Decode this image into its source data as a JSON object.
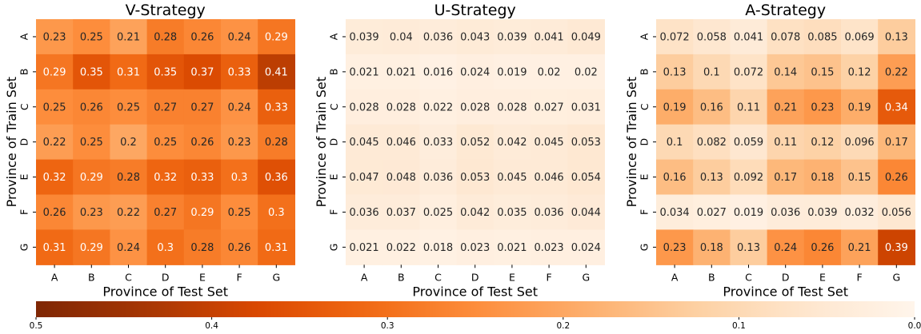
{
  "colors": {
    "scale": [
      "#fff5eb",
      "#fee6ce",
      "#fdd0a2",
      "#fdae6b",
      "#fd8d3c",
      "#f16913",
      "#d94801",
      "#a63603",
      "#7f2704"
    ],
    "text_dark": "#262626",
    "text_light": "#ffffff"
  },
  "chart_data": [
    {
      "type": "heatmap",
      "title": "V-Strategy",
      "xlabel": "Province of Test Set",
      "ylabel": "Province of Train Set",
      "x": [
        "A",
        "B",
        "C",
        "D",
        "E",
        "F",
        "G"
      ],
      "y": [
        "A",
        "B",
        "C",
        "D",
        "E",
        "F",
        "G"
      ],
      "values": [
        [
          "0.23",
          "0.25",
          "0.21",
          "0.28",
          "0.26",
          "0.24",
          "0.29"
        ],
        [
          "0.29",
          "0.35",
          "0.31",
          "0.35",
          "0.37",
          "0.33",
          "0.41"
        ],
        [
          "0.25",
          "0.26",
          "0.25",
          "0.27",
          "0.27",
          "0.24",
          "0.33"
        ],
        [
          "0.22",
          "0.25",
          "0.2",
          "0.25",
          "0.26",
          "0.23",
          "0.28"
        ],
        [
          "0.32",
          "0.29",
          "0.28",
          "0.32",
          "0.33",
          "0.3",
          "0.36"
        ],
        [
          "0.26",
          "0.23",
          "0.22",
          "0.27",
          "0.29",
          "0.25",
          "0.3"
        ],
        [
          "0.31",
          "0.29",
          "0.24",
          "0.3",
          "0.28",
          "0.26",
          "0.31"
        ]
      ],
      "vmin": 0.0,
      "vmax": 0.5
    },
    {
      "type": "heatmap",
      "title": "U-Strategy",
      "xlabel": "Province of Test Set",
      "ylabel": "Province of Train Set",
      "x": [
        "A",
        "B",
        "C",
        "D",
        "E",
        "F",
        "G"
      ],
      "y": [
        "A",
        "B",
        "C",
        "D",
        "E",
        "F",
        "G"
      ],
      "values": [
        [
          "0.039",
          "0.04",
          "0.036",
          "0.043",
          "0.039",
          "0.041",
          "0.049"
        ],
        [
          "0.021",
          "0.021",
          "0.016",
          "0.024",
          "0.019",
          "0.02",
          "0.02"
        ],
        [
          "0.028",
          "0.028",
          "0.022",
          "0.028",
          "0.028",
          "0.027",
          "0.031"
        ],
        [
          "0.045",
          "0.046",
          "0.033",
          "0.052",
          "0.042",
          "0.045",
          "0.053"
        ],
        [
          "0.047",
          "0.048",
          "0.036",
          "0.053",
          "0.045",
          "0.046",
          "0.054"
        ],
        [
          "0.036",
          "0.037",
          "0.025",
          "0.042",
          "0.035",
          "0.036",
          "0.044"
        ],
        [
          "0.021",
          "0.022",
          "0.018",
          "0.023",
          "0.021",
          "0.023",
          "0.024"
        ]
      ],
      "vmin": 0.0,
      "vmax": 0.5
    },
    {
      "type": "heatmap",
      "title": "A-Strategy",
      "xlabel": "Province of Test Set",
      "ylabel": "Province of Train Set",
      "x": [
        "A",
        "B",
        "C",
        "D",
        "E",
        "F",
        "G"
      ],
      "y": [
        "A",
        "B",
        "C",
        "D",
        "E",
        "F",
        "G"
      ],
      "values": [
        [
          "0.072",
          "0.058",
          "0.041",
          "0.078",
          "0.085",
          "0.069",
          "0.13"
        ],
        [
          "0.13",
          "0.1",
          "0.072",
          "0.14",
          "0.15",
          "0.12",
          "0.22"
        ],
        [
          "0.19",
          "0.16",
          "0.11",
          "0.21",
          "0.23",
          "0.19",
          "0.34"
        ],
        [
          "0.1",
          "0.082",
          "0.059",
          "0.11",
          "0.12",
          "0.096",
          "0.17"
        ],
        [
          "0.16",
          "0.13",
          "0.092",
          "0.17",
          "0.18",
          "0.15",
          "0.26"
        ],
        [
          "0.034",
          "0.027",
          "0.019",
          "0.036",
          "0.039",
          "0.032",
          "0.056"
        ],
        [
          "0.23",
          "0.18",
          "0.13",
          "0.24",
          "0.26",
          "0.21",
          "0.39"
        ]
      ],
      "vmin": 0.0,
      "vmax": 0.5
    }
  ],
  "colorbar": {
    "ticks": [
      "0.5",
      "0.4",
      "0.3",
      "0.2",
      "0.1",
      "0.0"
    ],
    "vmin": 0.0,
    "vmax": 0.5,
    "orientation": "horizontal",
    "direction": "high-to-low"
  }
}
